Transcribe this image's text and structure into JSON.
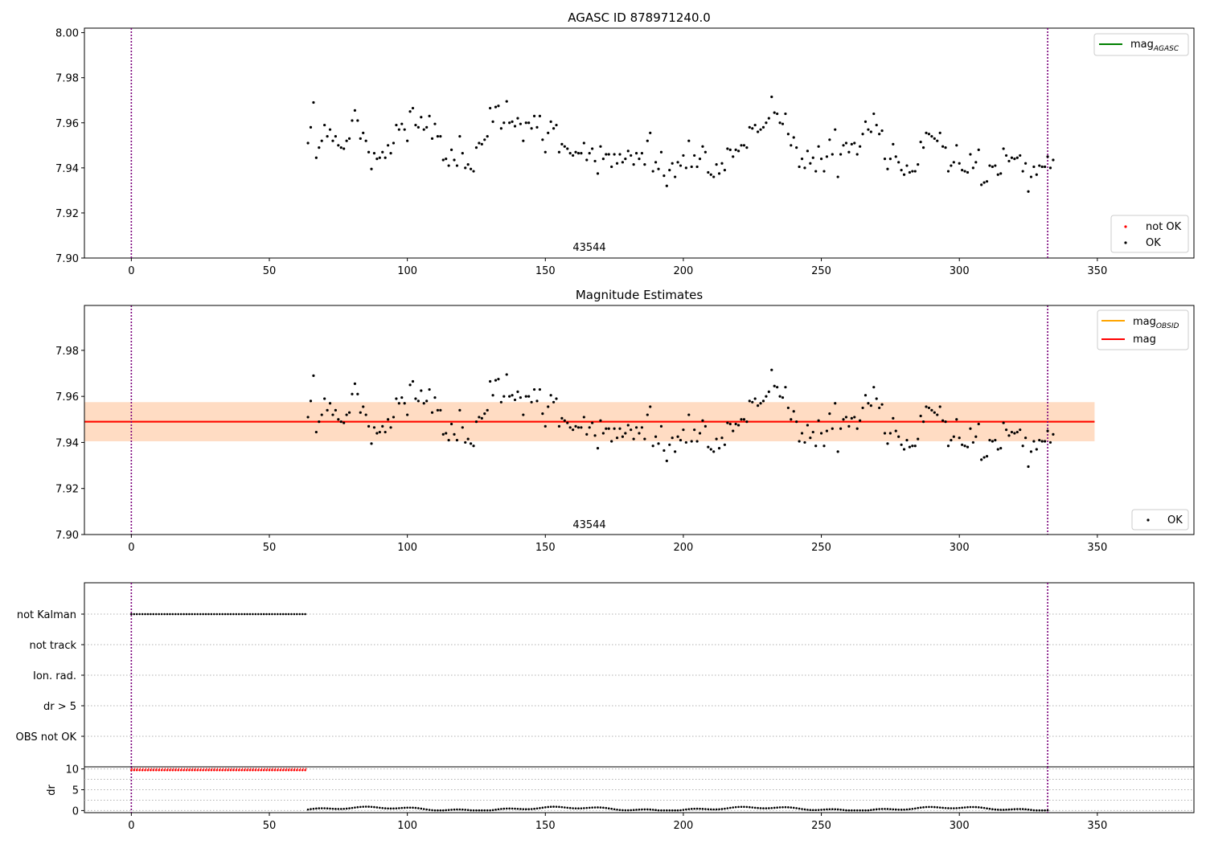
{
  "chart_data": [
    {
      "type": "scatter",
      "title": "AGASC ID 878971240.0",
      "xlim": [
        -17,
        385
      ],
      "ylim": [
        7.9,
        8.002
      ],
      "xticks": [
        "0",
        "50",
        "100",
        "150",
        "200",
        "250",
        "300",
        "350"
      ],
      "yticks": [
        "7.90",
        "7.92",
        "7.94",
        "7.96",
        "7.98",
        "8.00"
      ],
      "obsid_label": "43544",
      "vlines": [
        0,
        332
      ],
      "line_legend": {
        "placement": "top-right",
        "entries": [
          {
            "main": "mag",
            "sub": "AGASC",
            "color": "#008000"
          }
        ]
      },
      "marker_legend": {
        "placement": "bottom-right",
        "entries": [
          {
            "label": "not OK",
            "color": "#ff0000"
          },
          {
            "label": "OK",
            "color": "#000000"
          }
        ]
      },
      "grid": false
    },
    {
      "type": "scatter",
      "title": "Magnitude Estimates",
      "xlim": [
        -17,
        385
      ],
      "ylim": [
        7.9,
        7.9995
      ],
      "xticks": [
        "0",
        "50",
        "100",
        "150",
        "200",
        "250",
        "300",
        "350"
      ],
      "yticks": [
        "7.90",
        "7.92",
        "7.94",
        "7.96",
        "7.98"
      ],
      "obsid_label": "43544",
      "vlines": [
        0,
        332
      ],
      "mag_line": 7.949,
      "band_obsid": [
        7.9405,
        7.9575
      ],
      "band_mag": [
        7.9405,
        7.9575
      ],
      "band_x": [
        -17,
        349
      ],
      "line_legend": {
        "placement": "top-right",
        "entries": [
          {
            "main": "mag",
            "sub": "OBSID",
            "color": "#ffa500"
          },
          {
            "main": "mag",
            "sub": "",
            "color": "#ff0000"
          }
        ]
      },
      "marker_legend": {
        "placement": "bottom-right",
        "entries": [
          {
            "label": "OK",
            "color": "#000000"
          }
        ]
      },
      "grid": false
    },
    {
      "type": "scatter",
      "categories": [
        "not Kalman",
        "not track",
        "Ion. rad.",
        "dr > 5",
        "OBS not OK"
      ],
      "flag_ranges": {
        "not Kalman": [
          0,
          63
        ]
      },
      "xlim": [
        -17,
        385
      ],
      "vlines": [
        0,
        332
      ],
      "grid": true
    },
    {
      "type": "scatter",
      "ylabel": "dr",
      "xlim": [
        -17,
        385
      ],
      "ylim": [
        -0.5,
        10.5
      ],
      "xticks": [
        "0",
        "50",
        "100",
        "150",
        "200",
        "250",
        "300",
        "350"
      ],
      "yticks": [
        "0",
        "5",
        "10"
      ],
      "dr_high": {
        "x_range": [
          0,
          63
        ],
        "value": 9.7
      },
      "dr_low": {
        "x_range": [
          64,
          332
        ],
        "value": 0.4
      },
      "vlines": [
        0,
        332
      ],
      "grid": true
    }
  ],
  "mag_samples": [
    [
      64,
      7.951
    ],
    [
      65,
      7.958
    ],
    [
      66,
      7.969
    ],
    [
      67,
      7.9445
    ],
    [
      68,
      7.949
    ],
    [
      69,
      7.952
    ],
    [
      70,
      7.959
    ],
    [
      71,
      7.954
    ],
    [
      72,
      7.957
    ],
    [
      73,
      7.952
    ],
    [
      74,
      7.954
    ],
    [
      75,
      7.95
    ],
    [
      76,
      7.949
    ],
    [
      77,
      7.9485
    ],
    [
      78,
      7.952
    ],
    [
      79,
      7.953
    ],
    [
      80,
      7.961
    ],
    [
      81,
      7.9655
    ],
    [
      82,
      7.961
    ],
    [
      83,
      7.953
    ],
    [
      84,
      7.9555
    ],
    [
      85,
      7.952
    ],
    [
      86,
      7.947
    ],
    [
      87,
      7.9395
    ],
    [
      88,
      7.9465
    ],
    [
      89,
      7.944
    ],
    [
      90,
      7.9445
    ],
    [
      91,
      7.947
    ],
    [
      92,
      7.9445
    ],
    [
      93,
      7.95
    ],
    [
      94,
      7.9465
    ],
    [
      95,
      7.951
    ],
    [
      96,
      7.959
    ],
    [
      97,
      7.957
    ],
    [
      98,
      7.9595
    ],
    [
      99,
      7.957
    ],
    [
      100,
      7.952
    ],
    [
      101,
      7.965
    ],
    [
      102,
      7.9665
    ],
    [
      103,
      7.959
    ],
    [
      104,
      7.958
    ],
    [
      105,
      7.9625
    ],
    [
      106,
      7.957
    ],
    [
      107,
      7.958
    ],
    [
      108,
      7.963
    ],
    [
      109,
      7.953
    ],
    [
      110,
      7.9595
    ],
    [
      111,
      7.954
    ],
    [
      112,
      7.954
    ],
    [
      113,
      7.9435
    ],
    [
      114,
      7.944
    ],
    [
      115,
      7.941
    ],
    [
      116,
      7.948
    ],
    [
      117,
      7.9435
    ],
    [
      118,
      7.941
    ],
    [
      119,
      7.954
    ],
    [
      120,
      7.9465
    ],
    [
      121,
      7.94
    ],
    [
      122,
      7.9415
    ],
    [
      123,
      7.9395
    ],
    [
      124,
      7.9385
    ],
    [
      125,
      7.949
    ],
    [
      126,
      7.951
    ],
    [
      127,
      7.9505
    ],
    [
      128,
      7.9525
    ],
    [
      129,
      7.954
    ],
    [
      130,
      7.9665
    ],
    [
      131,
      7.9605
    ],
    [
      132,
      7.967
    ],
    [
      133,
      7.9675
    ],
    [
      134,
      7.9575
    ],
    [
      135,
      7.96
    ],
    [
      136,
      7.9695
    ],
    [
      137,
      7.96
    ],
    [
      138,
      7.9605
    ],
    [
      139,
      7.9585
    ],
    [
      140,
      7.962
    ],
    [
      141,
      7.9595
    ],
    [
      142,
      7.952
    ],
    [
      143,
      7.96
    ],
    [
      144,
      7.96
    ],
    [
      145,
      7.9575
    ],
    [
      146,
      7.963
    ],
    [
      147,
      7.958
    ],
    [
      148,
      7.963
    ],
    [
      149,
      7.9525
    ],
    [
      150,
      7.947
    ],
    [
      151,
      7.9555
    ],
    [
      152,
      7.9605
    ],
    [
      153,
      7.9575
    ],
    [
      154,
      7.959
    ],
    [
      155,
      7.947
    ],
    [
      156,
      7.9505
    ],
    [
      157,
      7.9495
    ],
    [
      158,
      7.9485
    ],
    [
      159,
      7.9465
    ],
    [
      160,
      7.9455
    ],
    [
      161,
      7.947
    ],
    [
      162,
      7.9465
    ],
    [
      163,
      7.9465
    ],
    [
      164,
      7.951
    ],
    [
      165,
      7.9435
    ],
    [
      166,
      7.9465
    ],
    [
      167,
      7.9485
    ],
    [
      168,
      7.943
    ],
    [
      169,
      7.9375
    ],
    [
      170,
      7.9495
    ],
    [
      171,
      7.944
    ],
    [
      172,
      7.946
    ],
    [
      173,
      7.946
    ],
    [
      174,
      7.9405
    ],
    [
      175,
      7.946
    ],
    [
      176,
      7.942
    ],
    [
      177,
      7.946
    ],
    [
      178,
      7.9425
    ],
    [
      179,
      7.944
    ],
    [
      180,
      7.9475
    ],
    [
      181,
      7.9455
    ],
    [
      182,
      7.9415
    ],
    [
      183,
      7.9465
    ],
    [
      184,
      7.944
    ],
    [
      185,
      7.9465
    ],
    [
      186,
      7.9415
    ],
    [
      187,
      7.952
    ],
    [
      188,
      7.9555
    ],
    [
      189,
      7.9385
    ],
    [
      190,
      7.9425
    ],
    [
      191,
      7.9395
    ],
    [
      192,
      7.947
    ],
    [
      193,
      7.9365
    ],
    [
      194,
      7.932
    ],
    [
      195,
      7.939
    ],
    [
      196,
      7.942
    ],
    [
      197,
      7.936
    ],
    [
      198,
      7.9425
    ],
    [
      199,
      7.941
    ],
    [
      200,
      7.9455
    ],
    [
      201,
      7.94
    ],
    [
      202,
      7.952
    ],
    [
      203,
      7.9405
    ],
    [
      204,
      7.9455
    ],
    [
      205,
      7.9405
    ],
    [
      206,
      7.944
    ],
    [
      207,
      7.9495
    ],
    [
      208,
      7.947
    ],
    [
      209,
      7.938
    ],
    [
      210,
      7.937
    ],
    [
      211,
      7.936
    ],
    [
      212,
      7.9415
    ],
    [
      213,
      7.9375
    ],
    [
      214,
      7.942
    ],
    [
      215,
      7.939
    ],
    [
      216,
      7.9485
    ],
    [
      217,
      7.948
    ],
    [
      218,
      7.945
    ],
    [
      219,
      7.948
    ],
    [
      220,
      7.9475
    ],
    [
      221,
      7.95
    ],
    [
      222,
      7.95
    ],
    [
      223,
      7.949
    ],
    [
      224,
      7.958
    ],
    [
      225,
      7.9575
    ],
    [
      226,
      7.959
    ],
    [
      227,
      7.956
    ],
    [
      228,
      7.957
    ],
    [
      229,
      7.958
    ],
    [
      230,
      7.96
    ],
    [
      231,
      7.962
    ],
    [
      232,
      7.9715
    ],
    [
      233,
      7.9645
    ],
    [
      234,
      7.964
    ],
    [
      235,
      7.96
    ],
    [
      236,
      7.9595
    ],
    [
      237,
      7.964
    ],
    [
      238,
      7.955
    ],
    [
      239,
      7.95
    ],
    [
      240,
      7.9535
    ],
    [
      241,
      7.949
    ],
    [
      242,
      7.9405
    ],
    [
      243,
      7.944
    ],
    [
      244,
      7.94
    ],
    [
      245,
      7.9475
    ],
    [
      246,
      7.942
    ],
    [
      247,
      7.9445
    ],
    [
      248,
      7.9385
    ],
    [
      249,
      7.9495
    ],
    [
      250,
      7.944
    ],
    [
      251,
      7.9385
    ],
    [
      252,
      7.945
    ],
    [
      253,
      7.9525
    ],
    [
      254,
      7.946
    ],
    [
      255,
      7.957
    ],
    [
      256,
      7.936
    ],
    [
      257,
      7.946
    ],
    [
      258,
      7.95
    ],
    [
      259,
      7.951
    ],
    [
      260,
      7.947
    ],
    [
      261,
      7.9505
    ],
    [
      262,
      7.951
    ],
    [
      263,
      7.946
    ],
    [
      264,
      7.9495
    ],
    [
      265,
      7.955
    ],
    [
      266,
      7.9605
    ],
    [
      267,
      7.957
    ],
    [
      268,
      7.956
    ],
    [
      269,
      7.964
    ],
    [
      270,
      7.959
    ],
    [
      271,
      7.955
    ],
    [
      272,
      7.9565
    ],
    [
      273,
      7.944
    ],
    [
      274,
      7.9395
    ],
    [
      275,
      7.944
    ],
    [
      276,
      7.9505
    ],
    [
      277,
      7.945
    ],
    [
      278,
      7.9425
    ],
    [
      279,
      7.939
    ],
    [
      280,
      7.937
    ],
    [
      281,
      7.941
    ],
    [
      282,
      7.938
    ],
    [
      283,
      7.9385
    ],
    [
      284,
      7.9385
    ],
    [
      285,
      7.9415
    ],
    [
      286,
      7.9515
    ],
    [
      287,
      7.949
    ],
    [
      288,
      7.9555
    ],
    [
      289,
      7.955
    ],
    [
      290,
      7.954
    ],
    [
      291,
      7.953
    ],
    [
      292,
      7.952
    ],
    [
      293,
      7.9555
    ],
    [
      294,
      7.9495
    ],
    [
      295,
      7.949
    ],
    [
      296,
      7.9385
    ],
    [
      297,
      7.941
    ],
    [
      298,
      7.9425
    ],
    [
      299,
      7.95
    ],
    [
      300,
      7.942
    ],
    [
      301,
      7.939
    ],
    [
      302,
      7.9385
    ],
    [
      303,
      7.938
    ],
    [
      304,
      7.946
    ],
    [
      305,
      7.94
    ],
    [
      306,
      7.9425
    ],
    [
      307,
      7.948
    ],
    [
      308,
      7.9325
    ],
    [
      309,
      7.9335
    ],
    [
      310,
      7.934
    ],
    [
      311,
      7.941
    ],
    [
      312,
      7.9405
    ],
    [
      313,
      7.941
    ],
    [
      314,
      7.937
    ],
    [
      315,
      7.9375
    ],
    [
      316,
      7.9485
    ],
    [
      317,
      7.9455
    ],
    [
      318,
      7.943
    ],
    [
      319,
      7.9445
    ],
    [
      320,
      7.944
    ],
    [
      321,
      7.9445
    ],
    [
      322,
      7.9455
    ],
    [
      323,
      7.9385
    ],
    [
      324,
      7.942
    ],
    [
      325,
      7.9295
    ],
    [
      326,
      7.936
    ],
    [
      327,
      7.9405
    ],
    [
      328,
      7.937
    ],
    [
      329,
      7.941
    ],
    [
      330,
      7.9405
    ],
    [
      331,
      7.9405
    ],
    [
      332,
      7.945
    ],
    [
      333,
      7.94
    ],
    [
      334,
      7.9435
    ]
  ]
}
